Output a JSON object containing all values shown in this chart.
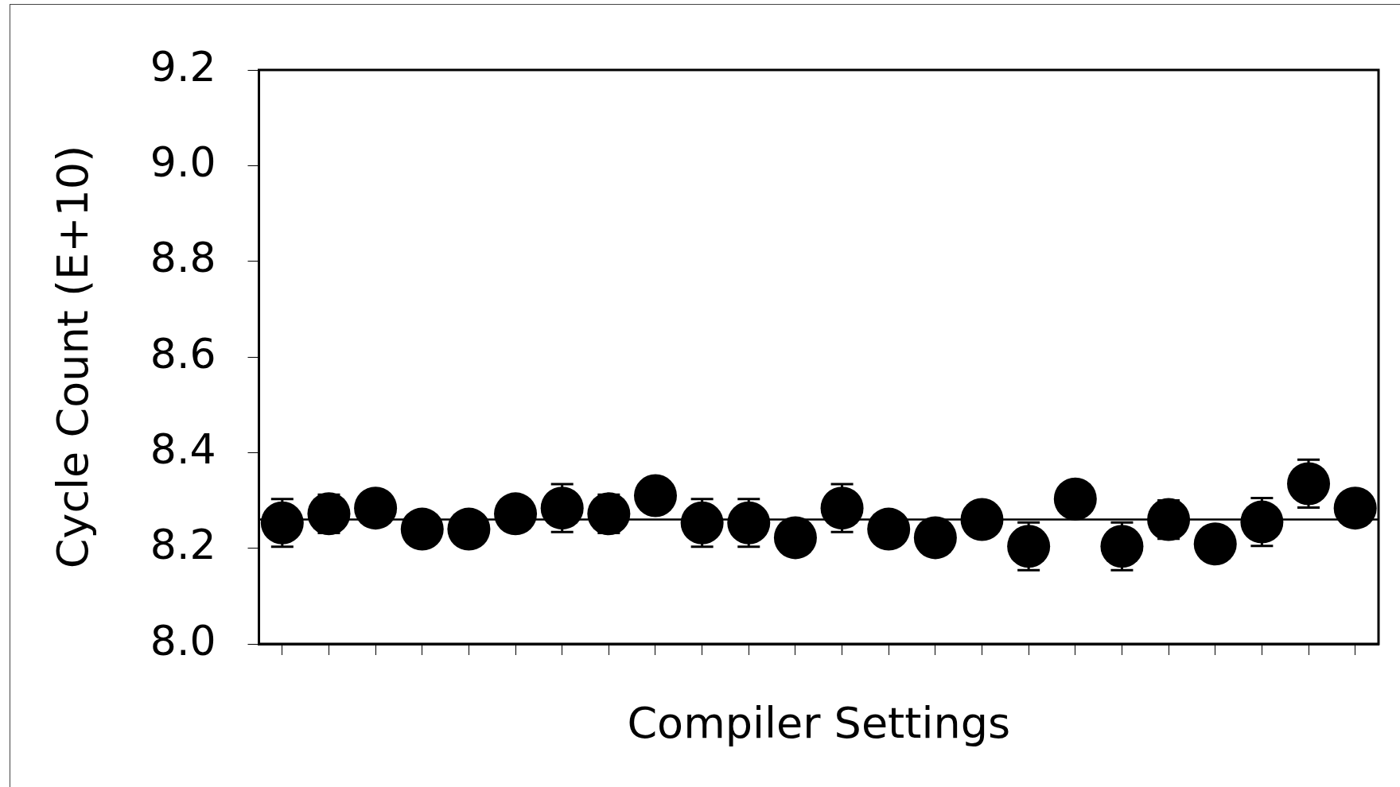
{
  "chart_data": {
    "type": "scatter",
    "xlabel": "Compiler Settings",
    "ylabel": "Cycle Count (E+10)",
    "categories": [
      null,
      null,
      null,
      null,
      null,
      null,
      null,
      null,
      null,
      null,
      null,
      null,
      null,
      null,
      null,
      null,
      null,
      null,
      null,
      null,
      null,
      null,
      null,
      null
    ],
    "series": [
      {
        "color": "#000000",
        "values": [
          8.253,
          8.272,
          8.284,
          8.24,
          8.24,
          8.272,
          8.284,
          8.272,
          8.31,
          8.253,
          8.253,
          8.222,
          8.284,
          8.24,
          8.222,
          8.26,
          8.204,
          8.303,
          8.204,
          8.26,
          8.209,
          8.255,
          8.335,
          8.284
        ],
        "errors": [
          0.05,
          0.04,
          null,
          null,
          null,
          null,
          0.05,
          0.04,
          null,
          0.05,
          0.05,
          null,
          0.05,
          null,
          null,
          null,
          0.05,
          null,
          0.05,
          0.04,
          null,
          0.05,
          0.05,
          null
        ]
      }
    ],
    "ylim": [
      8.0,
      9.2
    ],
    "yticks": [
      {
        "value": 8.0,
        "label": "8.0"
      },
      {
        "value": 8.2,
        "label": "8.2"
      },
      {
        "value": 8.4,
        "label": "8.4"
      },
      {
        "value": 8.6,
        "label": "8.6"
      },
      {
        "value": 8.8,
        "label": "8.8"
      },
      {
        "value": 9.0,
        "label": "9.0"
      },
      {
        "value": 9.2,
        "label": "9.2"
      }
    ],
    "ref_lines": [
      {
        "axis": "y",
        "value": 8.26,
        "color": "#000000"
      }
    ],
    "marker": "circle",
    "grid": false,
    "legend": false
  }
}
